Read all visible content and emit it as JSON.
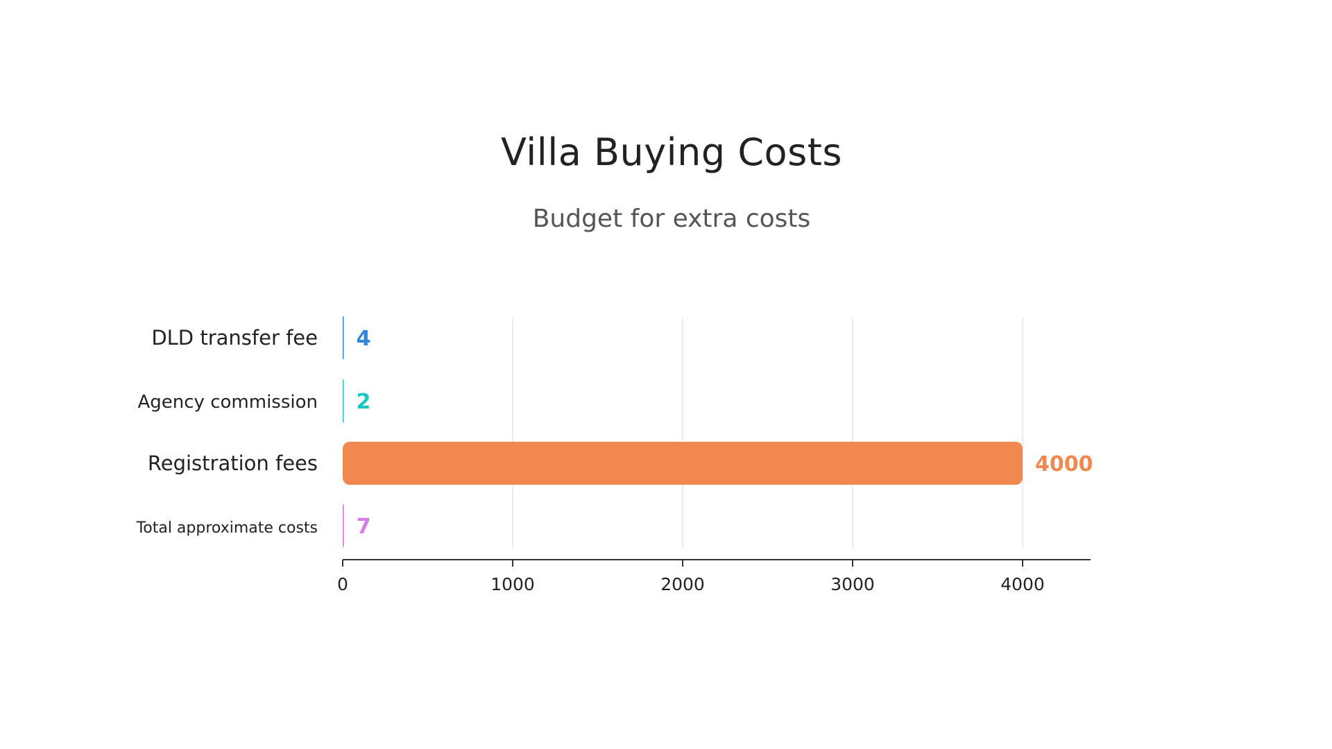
{
  "chart_data": {
    "type": "bar",
    "orientation": "horizontal",
    "title": "Villa Buying Costs",
    "subtitle": "Budget for extra costs",
    "categories": [
      "DLD transfer fee",
      "Agency commission",
      "Registration fees",
      "Total approximate costs"
    ],
    "values": [
      4,
      2,
      4000,
      7
    ],
    "colors": [
      "#2e86de",
      "#1cc6c0",
      "#f0884f",
      "#d77be6"
    ],
    "xlim": [
      0,
      4400
    ],
    "xticks": [
      0,
      1000,
      2000,
      3000,
      4000
    ],
    "xlabel": "",
    "ylabel": "",
    "grid": "vertical",
    "legend": "none"
  }
}
